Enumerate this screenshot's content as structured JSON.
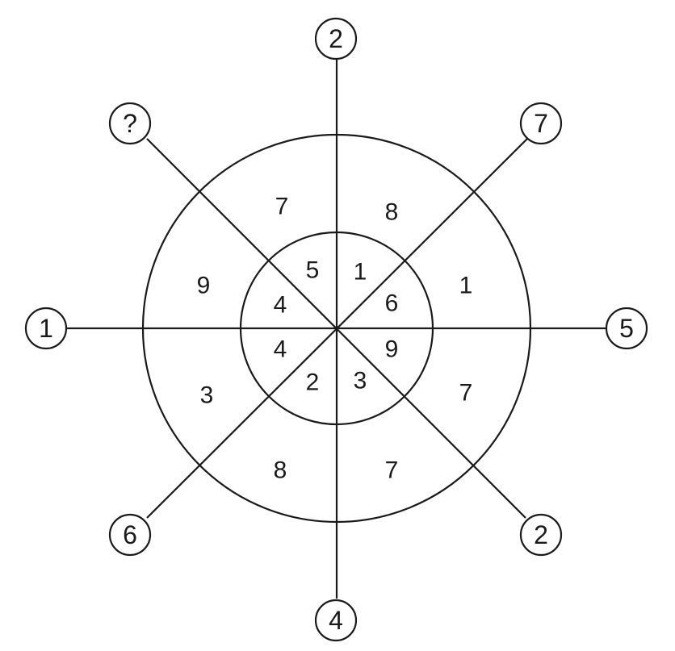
{
  "puzzle": {
    "spokes": {
      "top": "2",
      "top_right": "7",
      "right": "5",
      "bottom_right": "2",
      "bottom": "4",
      "bottom_left": "6",
      "left": "1",
      "top_left": "?"
    },
    "inner_ring": {
      "top_left_upper": "5",
      "top_right_upper": "1",
      "right_upper": "6",
      "right_lower": "9",
      "bottom_right_lower": "3",
      "bottom_left_lower": "2",
      "left_lower": "4",
      "left_upper": "4"
    },
    "outer_ring": {
      "top_left_upper": "7",
      "top_right_upper": "8",
      "right_upper": "1",
      "right_lower": "7",
      "bottom_right_lower": "7",
      "bottom_left_lower": "8",
      "left_lower": "3",
      "left_upper": "9"
    }
  }
}
